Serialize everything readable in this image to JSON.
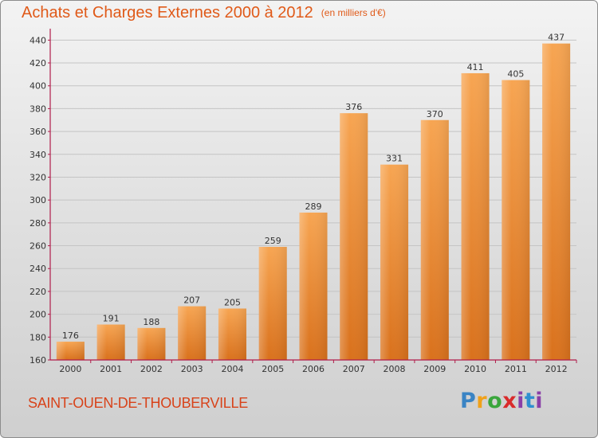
{
  "header": {
    "title": "Achats et Charges Externes 2000 à 2012",
    "unit": "(en milliers d'€)"
  },
  "commune": "SAINT-OUEN-DE-THOUBERVILLE",
  "logo": {
    "text": "Proxiti",
    "colors": [
      "#3a84c4",
      "#f0a11a",
      "#3aa63c",
      "#d92b2b",
      "#8a3fa7",
      "#2f8fd0",
      "#f0a11a"
    ]
  },
  "chart_data": {
    "type": "bar",
    "title": "Achats et Charges Externes 2000 à 2012",
    "subtitle": "(en milliers d'€)",
    "xlabel": "",
    "ylabel": "",
    "categories": [
      "2000",
      "2001",
      "2002",
      "2003",
      "2004",
      "2005",
      "2006",
      "2007",
      "2008",
      "2009",
      "2010",
      "2011",
      "2012"
    ],
    "values": [
      176,
      191,
      188,
      207,
      205,
      259,
      289,
      376,
      331,
      370,
      411,
      405,
      437
    ],
    "ylim": [
      160,
      450
    ],
    "yticks": [
      160,
      180,
      200,
      220,
      240,
      260,
      280,
      300,
      320,
      340,
      360,
      380,
      400,
      420,
      440
    ],
    "grid": true,
    "legend": "none",
    "bar_color": "#f08c2e",
    "axis_color": "#b01c4a"
  }
}
